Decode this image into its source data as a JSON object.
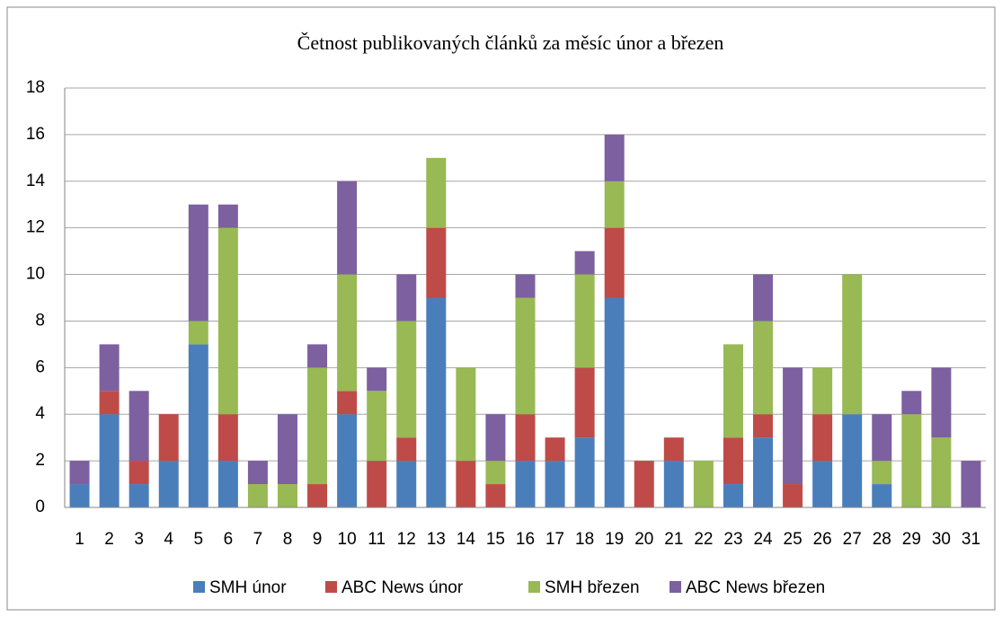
{
  "chart_data": {
    "type": "stacked_bar",
    "title": "Četnost publikovaných článků za měsíc  únor a březen",
    "categories": [
      "1",
      "2",
      "3",
      "4",
      "5",
      "6",
      "7",
      "8",
      "9",
      "10",
      "11",
      "12",
      "13",
      "14",
      "15",
      "16",
      "17",
      "18",
      "19",
      "20",
      "21",
      "22",
      "23",
      "24",
      "25",
      "26",
      "27",
      "28",
      "29",
      "30",
      "31"
    ],
    "series": [
      {
        "name": "SMH únor",
        "color": "#4a7ebb",
        "values": [
          1,
          4,
          1,
          2,
          7,
          2,
          0,
          0,
          0,
          4,
          0,
          2,
          9,
          0,
          0,
          2,
          2,
          3,
          9,
          0,
          2,
          0,
          1,
          3,
          0,
          2,
          4,
          1,
          0,
          0,
          0
        ]
      },
      {
        "name": "ABC News únor",
        "color": "#be4b48",
        "values": [
          0,
          1,
          1,
          2,
          0,
          2,
          0,
          0,
          1,
          1,
          2,
          1,
          3,
          2,
          1,
          2,
          1,
          3,
          3,
          2,
          1,
          0,
          2,
          1,
          1,
          2,
          0,
          0,
          0,
          0,
          0
        ]
      },
      {
        "name": "SMH březen",
        "color": "#98b954",
        "values": [
          0,
          0,
          0,
          0,
          1,
          8,
          1,
          1,
          5,
          5,
          3,
          5,
          3,
          4,
          1,
          5,
          0,
          4,
          2,
          0,
          0,
          2,
          4,
          4,
          0,
          2,
          6,
          1,
          4,
          3,
          0
        ]
      },
      {
        "name": "ABC News březen",
        "color": "#7d60a0",
        "values": [
          1,
          2,
          3,
          0,
          5,
          1,
          1,
          3,
          1,
          4,
          1,
          2,
          0,
          0,
          2,
          1,
          0,
          1,
          2,
          0,
          0,
          0,
          0,
          2,
          5,
          0,
          0,
          2,
          1,
          3,
          2
        ]
      }
    ],
    "ylim": [
      0,
      18
    ],
    "yticks": [
      0,
      2,
      4,
      6,
      8,
      10,
      12,
      14,
      16,
      18
    ],
    "grid": true,
    "legend": "bottom"
  }
}
